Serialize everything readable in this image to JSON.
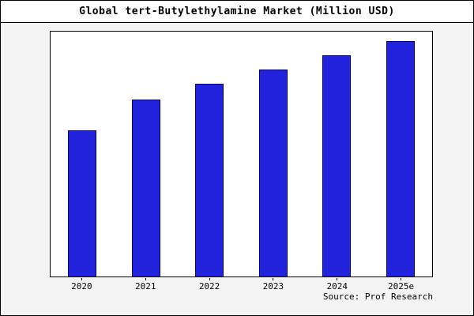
{
  "header": {
    "title": "Global tert-Butylethylamine Market (Million USD)"
  },
  "footer": {
    "source": "Source: Prof Research"
  },
  "colors": {
    "bar_fill": "#2222dd",
    "bar_edge": "#000066",
    "frame_border": "#000000",
    "outer_bg": "#f4f4f4",
    "plot_bg": "#ffffff"
  },
  "chart_data": {
    "type": "bar",
    "title": "Global tert-Butylethylamine Market (Million USD)",
    "categories": [
      "2020",
      "2021",
      "2022",
      "2023",
      "2024",
      "2025e"
    ],
    "values": [
      62,
      75,
      82,
      88,
      94,
      100
    ],
    "xlabel": "",
    "ylabel": "",
    "ylim": [
      0,
      104
    ],
    "grid": false,
    "legend": false,
    "note": "No y-axis tick labels shown; values are relative estimates normalized to 2025e = 100"
  }
}
